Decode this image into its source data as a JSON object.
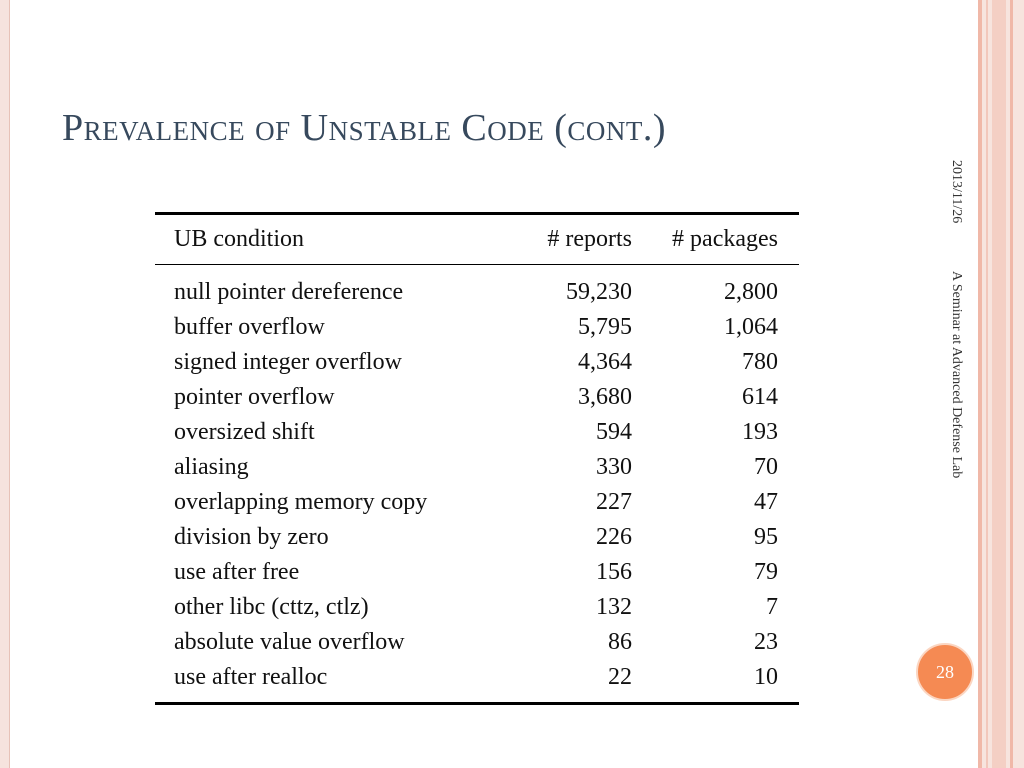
{
  "slide": {
    "title": "Prevalence of Unstable Code (cont.)",
    "date": "2013/11/26",
    "footer": "A Seminar at Advanced Defense Lab",
    "page_number": "28"
  },
  "table": {
    "headers": [
      "UB condition",
      "# reports",
      "# packages"
    ],
    "rows": [
      [
        "null pointer dereference",
        "59,230",
        "2,800"
      ],
      [
        "buffer overflow",
        "5,795",
        "1,064"
      ],
      [
        "signed integer overflow",
        "4,364",
        "780"
      ],
      [
        "pointer overflow",
        "3,680",
        "614"
      ],
      [
        "oversized shift",
        "594",
        "193"
      ],
      [
        "aliasing",
        "330",
        "70"
      ],
      [
        "overlapping memory copy",
        "227",
        "47"
      ],
      [
        "division by zero",
        "226",
        "95"
      ],
      [
        "use after free",
        "156",
        "79"
      ],
      [
        "other libc (cttz, ctlz)",
        "132",
        "7"
      ],
      [
        "absolute value overflow",
        "86",
        "23"
      ],
      [
        "use after realloc",
        "22",
        "10"
      ]
    ]
  }
}
